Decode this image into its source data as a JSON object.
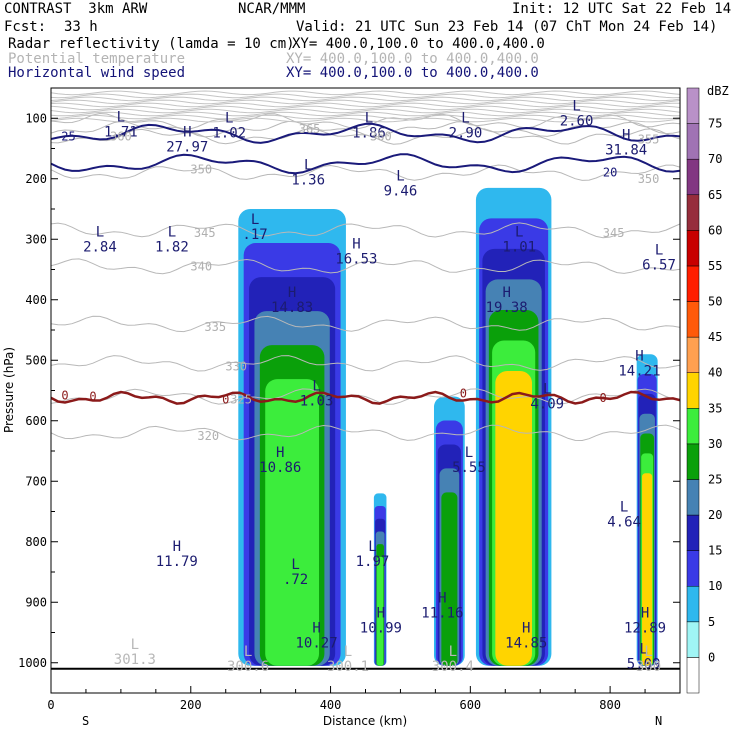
{
  "header": {
    "title": "CONTRAST  3km ARW",
    "org": "NCAR/MMM",
    "init": "Init: 12 UTC Sat 22 Feb 14",
    "fcst_label": "Fcst:",
    "fcst_value": "33 h",
    "valid": "Valid: 21 UTC Sun 23 Feb 14 (07 ChT Mon 24 Feb 14)",
    "fields": [
      {
        "name": "Radar reflectivity (lamda = 10 cm)",
        "xy": "XY= 400.0,100.0 to 400.0,400.0",
        "color": "#000000"
      },
      {
        "name": "Potential temperature",
        "xy": "XY= 400.0,100.0 to 400.0,400.0",
        "color": "#b4b4b4"
      },
      {
        "name": "Horizontal wind speed",
        "xy": "XY= 400.0,100.0 to 400.0,400.0",
        "color": "#141478"
      }
    ]
  },
  "chart_data": {
    "type": "heatmap",
    "title": "",
    "xlabel": "Distance (km)",
    "ylabel": "Pressure (hPa)",
    "xlim": [
      0,
      900
    ],
    "ylim": [
      1050,
      50
    ],
    "x_ticks": [
      0,
      200,
      400,
      600,
      800
    ],
    "y_ticks": [
      100,
      200,
      300,
      400,
      500,
      600,
      700,
      800,
      900,
      1000
    ],
    "x_end_labels": {
      "left": "S",
      "right": "N"
    },
    "colorbar": {
      "unit": "dBZ",
      "levels": [
        0,
        5,
        10,
        15,
        20,
        25,
        30,
        35,
        40,
        45,
        50,
        55,
        60,
        65,
        70,
        75
      ],
      "colors": [
        "#ffffff",
        "#a0f5f5",
        "#2fb8ee",
        "#3a3ae6",
        "#2222b8",
        "#4682b4",
        "#0aa00a",
        "#3ced3c",
        "#ffd400",
        "#ffa050",
        "#ff5a0a",
        "#ff1e00",
        "#c80000",
        "#962d3c",
        "#823782",
        "#a073b4",
        "#b991c8"
      ]
    },
    "reflectivity_cells": [
      {
        "x1": 268,
        "x2": 422,
        "p_top": 250,
        "p_bottom": 1005,
        "max_dbz": 30
      },
      {
        "x1": 462,
        "x2": 480,
        "p_top": 720,
        "p_bottom": 1005,
        "max_dbz": 30
      },
      {
        "x1": 548,
        "x2": 592,
        "p_top": 560,
        "p_bottom": 1005,
        "max_dbz": 25
      },
      {
        "x1": 608,
        "x2": 716,
        "p_top": 215,
        "p_bottom": 1005,
        "max_dbz": 35
      },
      {
        "x1": 838,
        "x2": 868,
        "p_top": 490,
        "p_bottom": 1005,
        "max_dbz": 35
      }
    ],
    "wind_extrema": [
      {
        "type": "L",
        "value": "1.71",
        "x": 100,
        "p": 110
      },
      {
        "type": "H",
        "value": "27.97",
        "x": 195,
        "p": 135
      },
      {
        "type": "L",
        "value": "1.02",
        "x": 255,
        "p": 112
      },
      {
        "type": "L",
        "value": "1.86",
        "x": 455,
        "p": 112
      },
      {
        "type": "L",
        "value": "2.90",
        "x": 593,
        "p": 112
      },
      {
        "type": "L",
        "value": "2.60",
        "x": 752,
        "p": 92
      },
      {
        "type": "H",
        "value": "31.84",
        "x": 823,
        "p": 140
      },
      {
        "type": "L",
        "value": "1.36",
        "x": 368,
        "p": 190
      },
      {
        "type": "L",
        "value": "9.46",
        "x": 500,
        "p": 208
      },
      {
        "type": "L",
        "value": "2.84",
        "x": 70,
        "p": 300
      },
      {
        "type": "L",
        "value": "1.82",
        "x": 173,
        "p": 300
      },
      {
        "type": "L",
        "value": ".17",
        "x": 292,
        "p": 280
      },
      {
        "type": "H",
        "value": "16.53",
        "x": 437,
        "p": 320
      },
      {
        "type": "L",
        "value": "1.01",
        "x": 670,
        "p": 300
      },
      {
        "type": "L",
        "value": "6.57",
        "x": 870,
        "p": 330
      },
      {
        "type": "H",
        "value": "14.83",
        "x": 345,
        "p": 400
      },
      {
        "type": "H",
        "value": "19.38",
        "x": 652,
        "p": 400
      },
      {
        "type": "H",
        "value": "14.21",
        "x": 842,
        "p": 505
      },
      {
        "type": "L",
        "value": "1.03",
        "x": 380,
        "p": 555
      },
      {
        "type": "L",
        "value": "4.09",
        "x": 710,
        "p": 560
      },
      {
        "type": "H",
        "value": "10.86",
        "x": 328,
        "p": 665
      },
      {
        "type": "L",
        "value": "5.55",
        "x": 598,
        "p": 665
      },
      {
        "type": "L",
        "value": "4.64",
        "x": 820,
        "p": 755
      },
      {
        "type": "H",
        "value": "11.79",
        "x": 180,
        "p": 820
      },
      {
        "type": "L",
        "value": ".72",
        "x": 350,
        "p": 850
      },
      {
        "type": "L",
        "value": "1.97",
        "x": 460,
        "p": 820
      },
      {
        "type": "H",
        "value": "11.16",
        "x": 560,
        "p": 905
      },
      {
        "type": "H",
        "value": "10.99",
        "x": 472,
        "p": 930
      },
      {
        "type": "H",
        "value": "10.27",
        "x": 380,
        "p": 955
      },
      {
        "type": "H",
        "value": "14.85",
        "x": 680,
        "p": 955
      },
      {
        "type": "H",
        "value": "12.89",
        "x": 850,
        "p": 930
      },
      {
        "type": "L",
        "value": "5.09",
        "x": 848,
        "p": 990
      }
    ],
    "wind_contour_labels": [
      {
        "value": "25",
        "x": 25,
        "p": 130
      },
      {
        "value": "20",
        "x": 800,
        "p": 190
      }
    ],
    "theta_extrema": [
      {
        "type": "L",
        "value": "301.3",
        "x": 120,
        "p": 1000
      },
      {
        "type": "L",
        "value": "300.6",
        "x": 282,
        "p": 1030
      },
      {
        "type": "L",
        "value": "300.1",
        "x": 425,
        "p": 1045
      },
      {
        "type": "L",
        "value": "300.4",
        "x": 575,
        "p": 1055
      },
      {
        "type": "L",
        "value": "300",
        "x": 855,
        "p": 1055
      }
    ],
    "theta_contour_labels": [
      {
        "value": "360",
        "x": 100,
        "p": 130
      },
      {
        "value": "365",
        "x": 370,
        "p": 118
      },
      {
        "value": "360",
        "x": 472,
        "p": 130
      },
      {
        "value": "355",
        "x": 855,
        "p": 135
      },
      {
        "value": "350",
        "x": 215,
        "p": 185
      },
      {
        "value": "350",
        "x": 855,
        "p": 200
      },
      {
        "value": "345",
        "x": 220,
        "p": 290
      },
      {
        "value": "345",
        "x": 805,
        "p": 290
      },
      {
        "value": "340",
        "x": 215,
        "p": 345
      },
      {
        "value": "335",
        "x": 235,
        "p": 445
      },
      {
        "value": "330",
        "x": 265,
        "p": 510
      },
      {
        "value": "325",
        "x": 272,
        "p": 565
      },
      {
        "value": "320",
        "x": 225,
        "p": 625
      }
    ],
    "freezing_level_label": "0",
    "theta_levels": [
      320,
      325,
      330,
      335,
      340,
      345,
      350,
      355,
      360,
      365
    ],
    "wind_speed_levels": [
      20,
      25
    ]
  }
}
